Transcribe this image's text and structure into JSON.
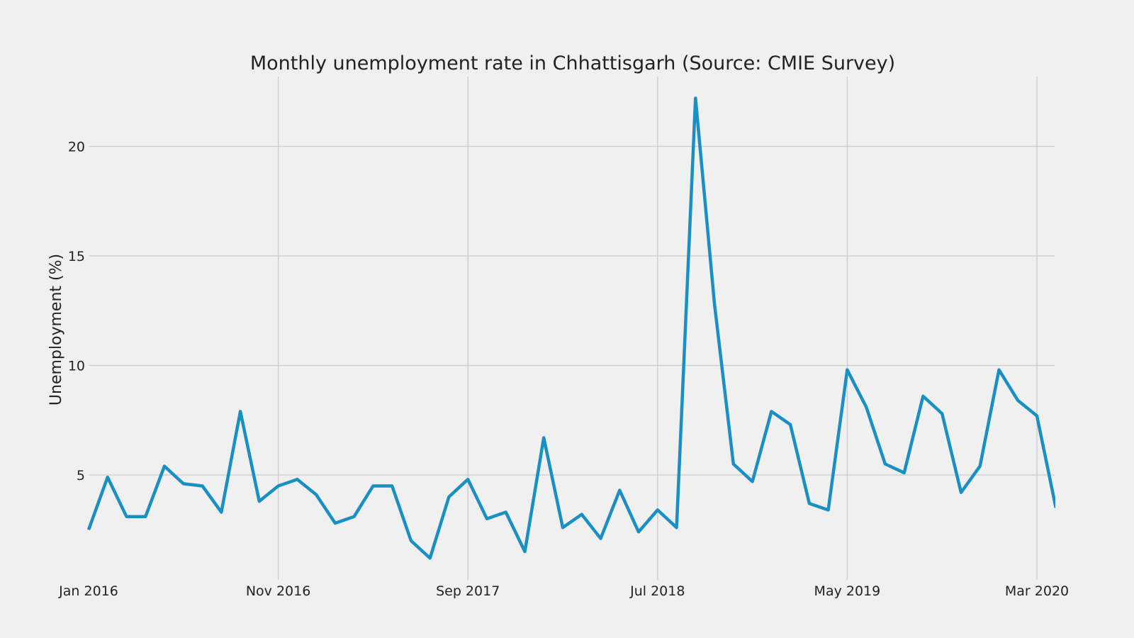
{
  "chart_data": {
    "type": "line",
    "title": "Monthly unemployment rate in Chhattisgarh (Source: CMIE Survey)",
    "xlabel": "",
    "ylabel": "Unemployment (%)",
    "grid": true,
    "legend": "none",
    "x_start": "Jan 2016",
    "x_unit": "month",
    "xlim_months": [
      0,
      51
    ],
    "ylim": [
      0,
      23
    ],
    "x_ticks": [
      {
        "month": 0,
        "label": "Jan 2016"
      },
      {
        "month": 10,
        "label": "Nov 2016"
      },
      {
        "month": 20,
        "label": "Sep 2017"
      },
      {
        "month": 30,
        "label": "Jul 2018"
      },
      {
        "month": 40,
        "label": "May 2019"
      },
      {
        "month": 50,
        "label": "Mar 2020"
      }
    ],
    "y_ticks": [
      {
        "value": 5,
        "label": "5"
      },
      {
        "value": 10,
        "label": "10"
      },
      {
        "value": 15,
        "label": "15"
      },
      {
        "value": 20,
        "label": "20"
      }
    ],
    "series": [
      {
        "name": "Unemployment rate",
        "color": "#1a8fc4",
        "x": [
          0,
          1,
          2,
          3,
          4,
          5,
          6,
          7,
          8,
          9,
          10,
          11,
          12,
          13,
          14,
          15,
          16,
          17,
          18,
          19,
          20,
          21,
          22,
          23,
          24,
          25,
          26,
          27,
          28,
          29,
          30,
          31,
          32,
          33,
          34,
          35,
          36,
          37,
          38,
          39,
          40,
          41,
          42,
          43,
          44,
          45,
          46,
          47,
          48,
          49,
          50,
          51
        ],
        "values": [
          2.5,
          4.9,
          3.1,
          3.1,
          5.4,
          4.6,
          4.5,
          3.3,
          7.9,
          3.8,
          4.5,
          4.8,
          4.1,
          2.8,
          3.1,
          4.5,
          4.5,
          2.0,
          1.2,
          4.0,
          4.8,
          3.0,
          3.3,
          1.5,
          6.7,
          2.6,
          3.2,
          2.1,
          4.3,
          2.4,
          3.4,
          2.6,
          22.2,
          12.8,
          5.5,
          4.7,
          7.9,
          7.3,
          3.7,
          3.4,
          9.8,
          8.1,
          5.5,
          5.1,
          8.6,
          7.8,
          4.2,
          5.4,
          9.8,
          8.4,
          7.7,
          3.5
        ]
      }
    ]
  }
}
